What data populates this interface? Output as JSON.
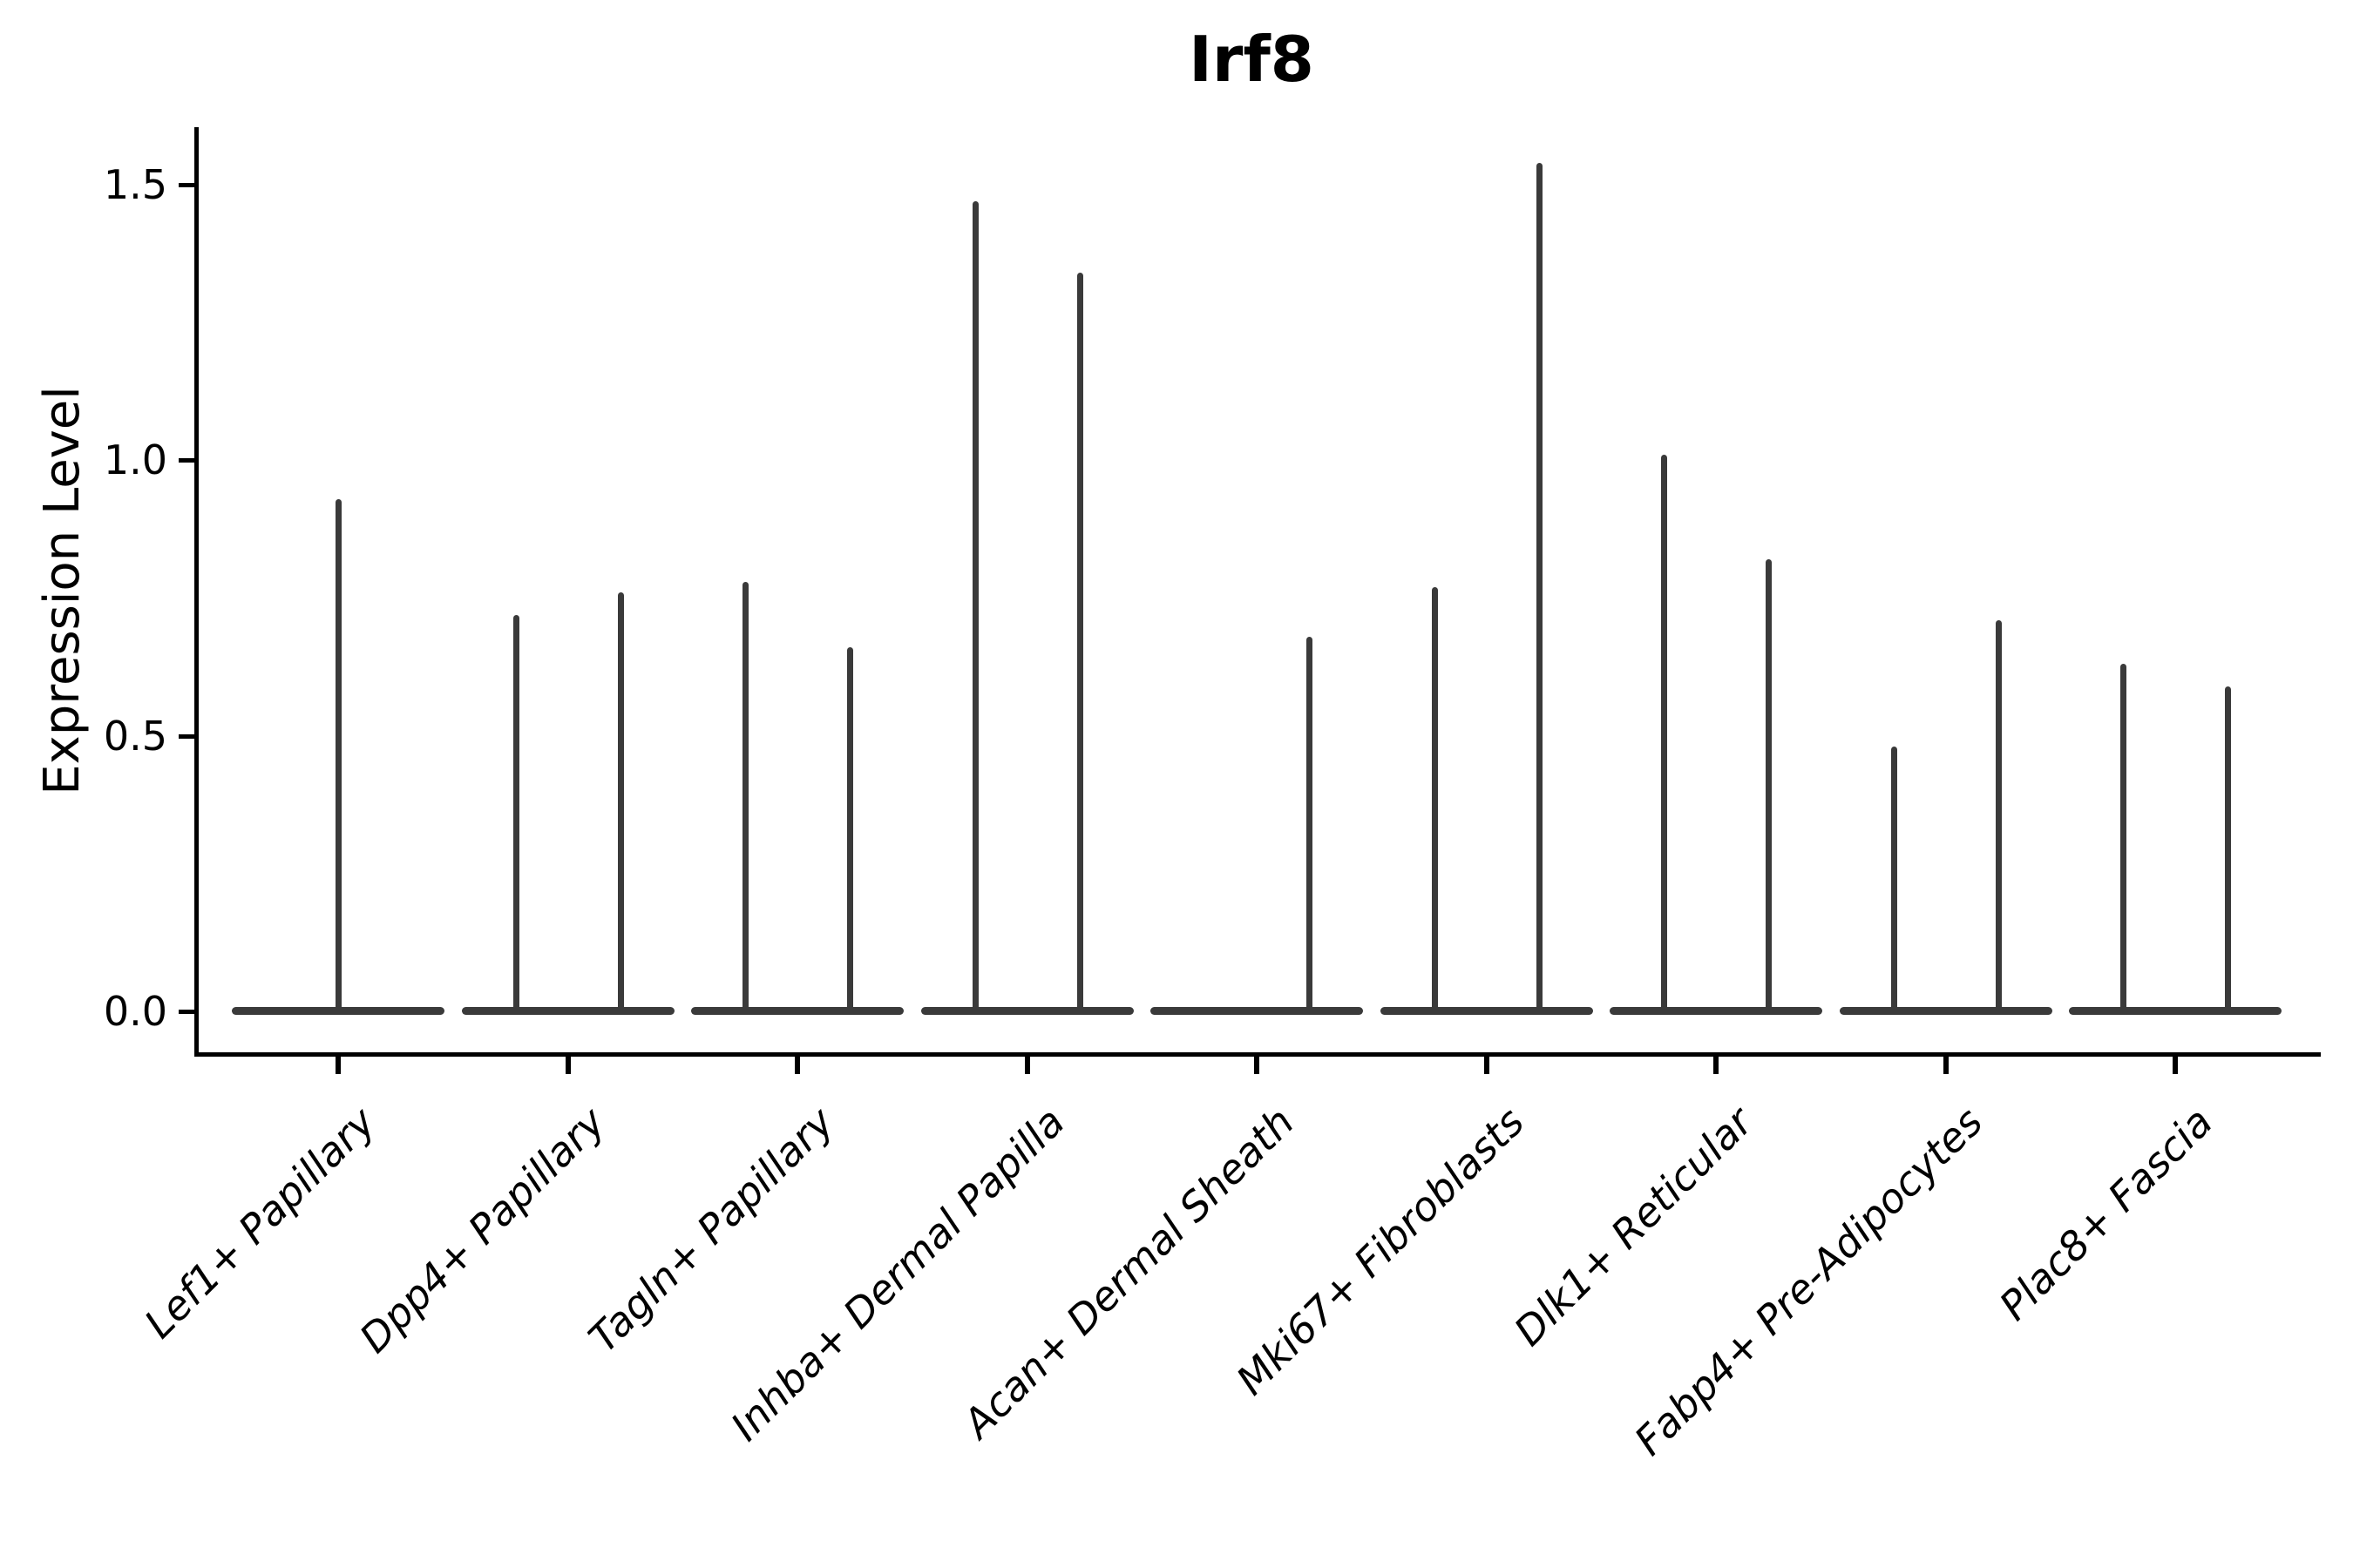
{
  "title": "Irf8",
  "y_axis": {
    "label": "Expression Level",
    "ticks": [
      {
        "label": "0.0",
        "value": 0.0
      },
      {
        "label": "0.5",
        "value": 0.5
      },
      {
        "label": "1.0",
        "value": 1.0
      },
      {
        "label": "1.5",
        "value": 1.5
      }
    ]
  },
  "chart_data": {
    "type": "violin",
    "title": "Irf8",
    "xlabel": "",
    "ylabel": "Expression Level",
    "ylim": [
      0,
      1.6
    ],
    "grid": false,
    "legend": "none",
    "description": "Single-cell expression violin plot; each cell-type category shows flat violin body at 0 with thin peak spikes reaching the maximum expression level",
    "categories": [
      "Lef1+ Papillary",
      "Dpp4+ Papillary",
      "Tagln+ Papillary",
      "Inhba+ Dermal Papilla",
      "Acan+ Dermal Sheath",
      "Mki67+ Fibroblasts",
      "Dlk1+ Reticular",
      "Fabp4+ Pre-Adipocytes",
      "Plac8+ Fascia"
    ],
    "series": [
      {
        "category": "Lef1+ Papillary",
        "violins": [
          {
            "side": "center",
            "peak": 0.93
          }
        ]
      },
      {
        "category": "Dpp4+ Papillary",
        "violins": [
          {
            "side": "left",
            "peak": 0.72
          },
          {
            "side": "right",
            "peak": 0.76
          }
        ]
      },
      {
        "category": "Tagln+ Papillary",
        "violins": [
          {
            "side": "left",
            "peak": 0.78
          },
          {
            "side": "right",
            "peak": 0.66
          }
        ]
      },
      {
        "category": "Inhba+ Dermal Papilla",
        "violins": [
          {
            "side": "left",
            "peak": 1.47
          },
          {
            "side": "right",
            "peak": 1.34
          }
        ]
      },
      {
        "category": "Acan+ Dermal Sheath",
        "violins": [
          {
            "side": "right",
            "peak": 0.68
          }
        ]
      },
      {
        "category": "Mki67+ Fibroblasts",
        "violins": [
          {
            "side": "left",
            "peak": 0.77
          },
          {
            "side": "right",
            "peak": 1.54
          }
        ]
      },
      {
        "category": "Dlk1+ Reticular",
        "violins": [
          {
            "side": "left",
            "peak": 1.01
          },
          {
            "side": "right",
            "peak": 0.82
          }
        ]
      },
      {
        "category": "Fabp4+ Pre-Adipocytes",
        "violins": [
          {
            "side": "left",
            "peak": 0.48
          },
          {
            "side": "right",
            "peak": 0.71
          }
        ]
      },
      {
        "category": "Plac8+ Fascia",
        "violins": [
          {
            "side": "left",
            "peak": 0.63
          },
          {
            "side": "right",
            "peak": 0.59
          }
        ]
      }
    ],
    "baseline_value": 0.0,
    "colors": {
      "violin": "#3a3a3a",
      "axis": "#000000",
      "text": "#000000",
      "background": "#ffffff"
    },
    "x_label_style": {
      "rotation_deg": 45,
      "italic": true
    }
  }
}
